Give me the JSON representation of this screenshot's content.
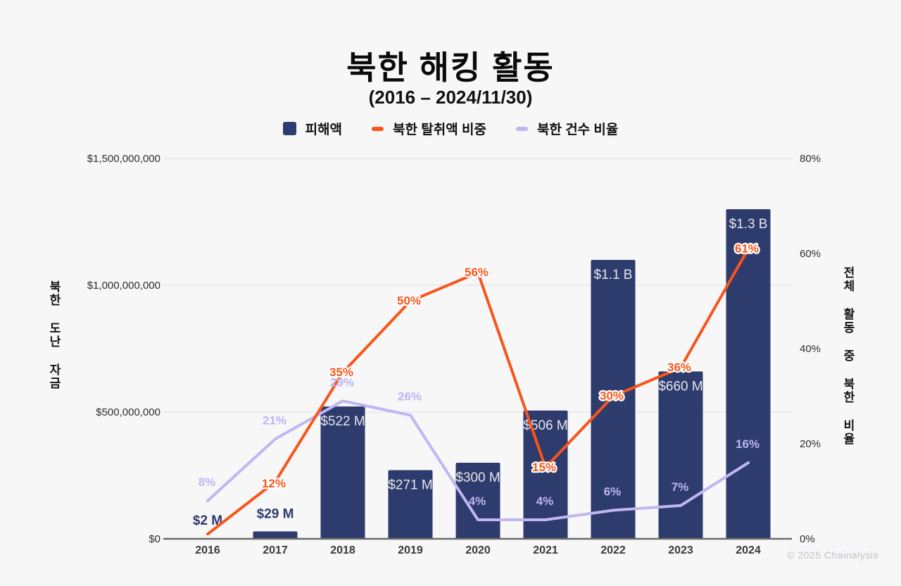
{
  "page": {
    "background": "#f7f7f8",
    "footer": "© 2025 Chainalysis"
  },
  "header": {
    "title": "북한 해킹 활동",
    "subtitle": "(2016 – 2024/11/30)"
  },
  "chart_data": {
    "type": "bar+line",
    "title": "북한 해킹 활동",
    "subtitle": "(2016 – 2024/11/30)",
    "categories": [
      "2016",
      "2017",
      "2018",
      "2019",
      "2020",
      "2021",
      "2022",
      "2023",
      "2024"
    ],
    "series": [
      {
        "name": "피해액",
        "type": "bar",
        "axis": "left",
        "color": "#2e3b6d",
        "values_usd": [
          2000000,
          29000000,
          522000000,
          271000000,
          300000000,
          506000000,
          1100000000,
          660000000,
          1300000000
        ],
        "labels": [
          "$2 M",
          "$29 M",
          "$522 M",
          "$271 M",
          "$300 M",
          "$506 M",
          "$1.1 B",
          "$660 M",
          "$1.3 B"
        ]
      },
      {
        "name": "북한 탈취액 비중",
        "type": "line",
        "axis": "right",
        "color": "#f8551a",
        "values_pct": [
          1,
          12,
          35,
          50,
          56,
          15,
          30,
          36,
          61
        ],
        "labels": [
          "",
          "12%",
          "35%",
          "50%",
          "56%",
          "15%",
          "30%",
          "36%",
          "61%"
        ]
      },
      {
        "name": "북한 건수 비율",
        "type": "line",
        "axis": "right",
        "color": "#c0b6f2",
        "values_pct": [
          8,
          21,
          29,
          26,
          4,
          4,
          6,
          7,
          16
        ],
        "labels": [
          "8%",
          "21%",
          "29%",
          "26%",
          "4%",
          "4%",
          "6%",
          "7%",
          "16%"
        ]
      }
    ],
    "left_axis": {
      "label": "북한 도난 자금",
      "max": 1500000000,
      "tick_values": [
        1500000000,
        1000000000,
        500000000,
        0
      ],
      "ticks": [
        "$1,500,000,000",
        "$1,000,000,000",
        "$500,000,000",
        "$0"
      ]
    },
    "right_axis": {
      "label": "전체 활동 중 북한 비율",
      "max": 80,
      "tick_values": [
        80,
        60,
        40,
        20,
        0
      ],
      "ticks": [
        "80%",
        "60%",
        "40%",
        "20%",
        "0%"
      ]
    },
    "grid": "horizontal",
    "legend_position": "top"
  }
}
